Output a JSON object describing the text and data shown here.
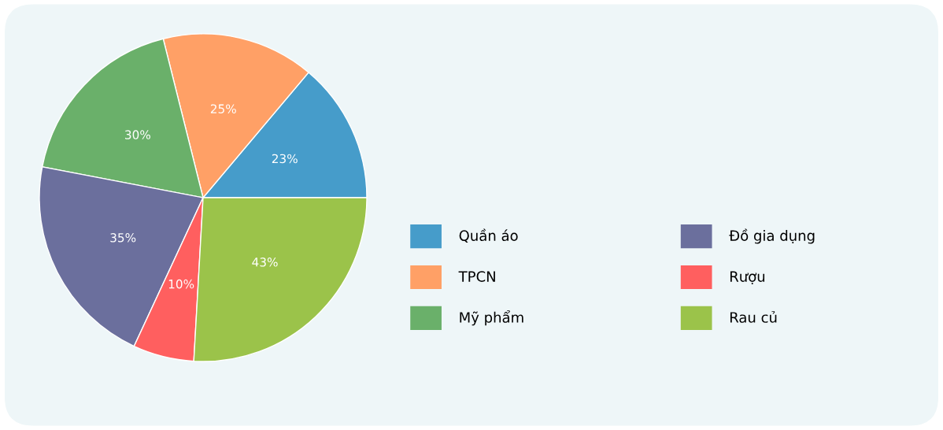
{
  "chart_data": {
    "type": "pie",
    "categories": [
      "Quần áo",
      "TPCN",
      "Mỹ phẩm",
      "Đồ gia dụng",
      "Rượu",
      "Rau củ"
    ],
    "values": [
      23,
      25,
      30,
      35,
      10,
      43
    ],
    "colors": [
      "#469cca",
      "#ffa066",
      "#6ab06a",
      "#6b6f9d",
      "#ff5f5f",
      "#9bc34a"
    ],
    "value_labels": [
      "23%",
      "25%",
      "30%",
      "35%",
      "10%",
      "43%"
    ],
    "legend": "right"
  }
}
